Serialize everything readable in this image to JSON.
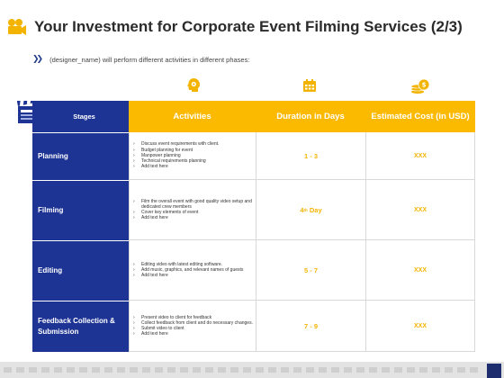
{
  "page": {
    "title": "Your Investment for Corporate Event Filming Services (2/3)",
    "subtitle": "(designer_name) will perform  different activities in different phases:",
    "title_icon": "movie-camera-icon"
  },
  "colors": {
    "navy": "#1e3494",
    "yellow": "#fbb900",
    "value_text": "#f3b400"
  },
  "table": {
    "headers": {
      "stages": "Stages",
      "activities": "Activities",
      "duration": "Duration  in Days",
      "cost": "Estimated Cost (in USD)"
    },
    "header_icons": [
      "gear-head-icon",
      "calendar-icon",
      "coins-icon",
      "clapperboard-icon"
    ],
    "rows": [
      {
        "stage": "Planning",
        "activities": [
          "Discuss event requirements with client.",
          "Budget planning for event",
          "Manpower planning",
          "Technical requirements planning",
          "Add text here"
        ],
        "duration": "1 - 3",
        "cost": "XXX"
      },
      {
        "stage": "Filming",
        "activities": [
          "Film the overall event with good quality video setup and dedicated crew members",
          "Cover key elements of event",
          "Add text here"
        ],
        "duration_num": "4",
        "duration_sup": "th",
        "duration_rest": " Day",
        "cost": "XXX"
      },
      {
        "stage": "Editing",
        "activities": [
          "Editing video with latest editing software.",
          "Add music, graphics, and relevant names of guests",
          "Add text here"
        ],
        "duration": "5 - 7",
        "cost": "XXX"
      },
      {
        "stage": "Feedback Collection & Submission",
        "activities": [
          "Present video to client for feedback",
          "Collect feedback from client and do necessary changes.",
          "Submit video to client",
          "Add text here"
        ],
        "duration": "7 - 9",
        "cost": "XXX"
      }
    ]
  }
}
